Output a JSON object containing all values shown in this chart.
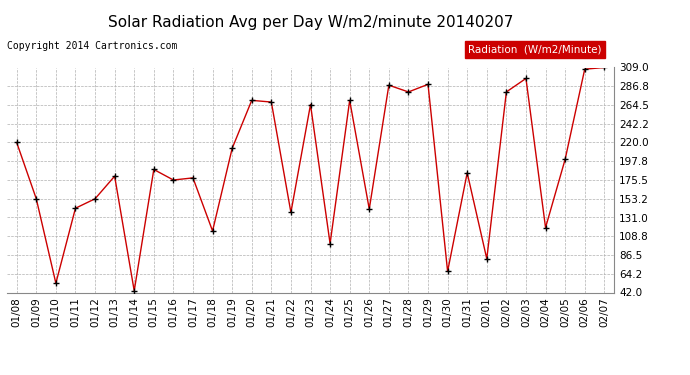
{
  "title": "Solar Radiation Avg per Day W/m2/minute 20140207",
  "copyright": "Copyright 2014 Cartronics.com",
  "legend_label": "Radiation  (W/m2/Minute)",
  "dates": [
    "01/08",
    "01/09",
    "01/10",
    "01/11",
    "01/12",
    "01/13",
    "01/14",
    "01/15",
    "01/16",
    "01/17",
    "01/18",
    "01/19",
    "01/20",
    "01/21",
    "01/22",
    "01/23",
    "01/24",
    "01/25",
    "01/26",
    "01/27",
    "01/28",
    "01/29",
    "01/30",
    "01/31",
    "02/01",
    "02/02",
    "02/03",
    "02/04",
    "02/05",
    "02/06",
    "02/07"
  ],
  "values": [
    220.0,
    153.2,
    53.0,
    142.0,
    153.2,
    180.0,
    44.0,
    188.0,
    175.5,
    178.0,
    115.0,
    213.0,
    270.0,
    268.0,
    137.0,
    265.0,
    100.0,
    270.0,
    141.0,
    288.0,
    280.0,
    289.0,
    67.0,
    184.0,
    82.0,
    280.0,
    296.0,
    119.0,
    200.0,
    307.0,
    309.0
  ],
  "ylim": [
    42.0,
    309.0
  ],
  "yticks": [
    42.0,
    64.2,
    86.5,
    108.8,
    131.0,
    153.2,
    175.5,
    197.8,
    220.0,
    242.2,
    264.5,
    286.8,
    309.0
  ],
  "line_color": "#cc0000",
  "marker_color": "black",
  "bg_color": "#ffffff",
  "grid_color": "#b0b0b0",
  "legend_bg": "#cc0000",
  "legend_text_color": "#ffffff",
  "title_fontsize": 11,
  "copyright_fontsize": 7,
  "tick_fontsize": 7.5
}
